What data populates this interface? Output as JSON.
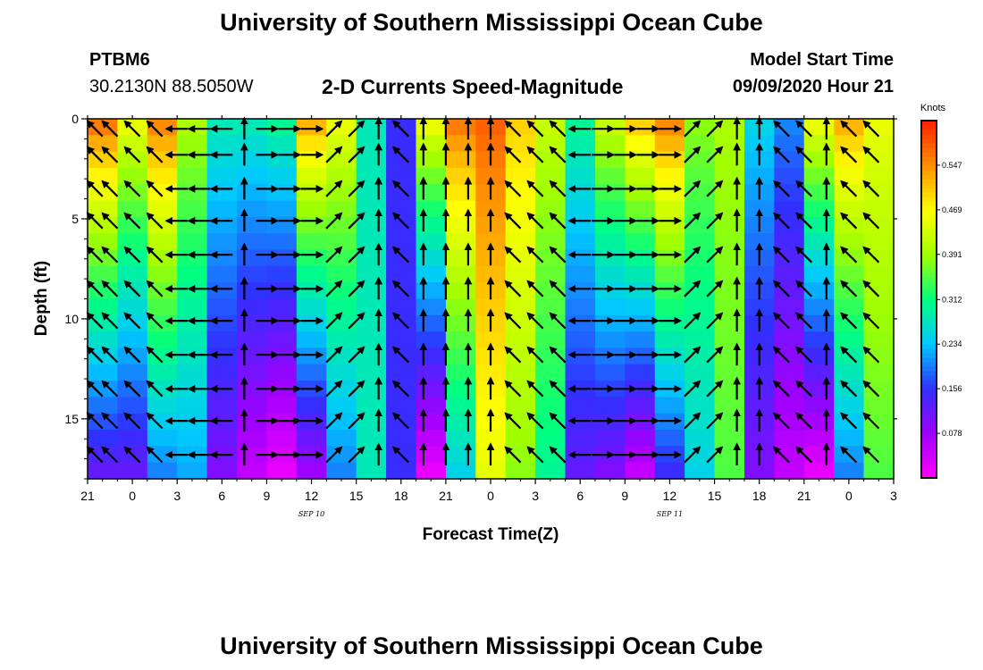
{
  "header": {
    "title": "University of Southern Mississippi Ocean Cube",
    "station_id": "PTBM6",
    "station_coords": "30.2130N 88.5050W",
    "plot_title": "2-D Currents Speed-Magnitude",
    "model_start_label": "Model Start Time",
    "model_start_value": "09/09/2020 Hour 21"
  },
  "footer": {
    "title": "University of Southern Mississippi Ocean Cube"
  },
  "chart_data": {
    "type": "heatmap",
    "title": "2-D Currents Speed-Magnitude",
    "xlabel": "Forecast Time(Z)",
    "ylabel": "Depth (ft)",
    "x_range_hours": [
      0,
      54
    ],
    "x_start": "09/09/2020 21Z",
    "x_tick_labels": [
      "21",
      "0",
      "3",
      "6",
      "9",
      "12",
      "15",
      "18",
      "21",
      "0",
      "3",
      "6",
      "9",
      "12",
      "15",
      "18",
      "21",
      "0",
      "3"
    ],
    "date_labels": [
      {
        "text": "SEP 10",
        "hour": 15
      },
      {
        "text": "SEP 11",
        "hour": 39
      }
    ],
    "y_range_ft": [
      0,
      18
    ],
    "y_ticks": [
      0,
      5,
      10,
      15
    ],
    "y_tick_labels": [
      "0",
      "5",
      "10",
      "15"
    ],
    "colorbar": {
      "title": "Knots",
      "min": 0.0,
      "max": 0.625,
      "tick_values": [
        0.547,
        0.469,
        0.391,
        0.312,
        0.234,
        0.156,
        0.078
      ],
      "tick_labels": [
        "0.547",
        "0.469",
        "0.391",
        "0.312",
        "0.234",
        "0.156",
        "0.078"
      ],
      "colors": [
        "#ff00ff",
        "#a000ff",
        "#3030ff",
        "#00c8ff",
        "#00ff80",
        "#a0ff00",
        "#ffff00",
        "#ff9000",
        "#ff2000"
      ]
    },
    "surface_speed_knots": [
      0.56,
      0.45,
      0.55,
      0.4,
      0.28,
      0.28,
      0.3,
      0.52,
      0.45,
      0.28,
      0.15,
      0.45,
      0.56,
      0.58,
      0.5,
      0.42,
      0.3,
      0.42,
      0.5,
      0.55,
      0.38,
      0.4,
      0.25,
      0.2,
      0.45,
      0.52,
      0.45
    ],
    "bottom_speed_knots": [
      0.12,
      0.12,
      0.2,
      0.22,
      0.1,
      0.05,
      0.02,
      0.08,
      0.2,
      0.28,
      0.15,
      0.02,
      0.25,
      0.45,
      0.38,
      0.3,
      0.12,
      0.1,
      0.05,
      0.15,
      0.25,
      0.35,
      0.1,
      0.05,
      0.02,
      0.2,
      0.35
    ],
    "vector_columns_hours": [
      0.5,
      1.5,
      3,
      4.5,
      6,
      7.5,
      9,
      10.5,
      12,
      13.5,
      15,
      16.5,
      18,
      19.5,
      21,
      22.5,
      24,
      25.5,
      27,
      28.5,
      30,
      31.5,
      33,
      34.5,
      36,
      37.5,
      39,
      40.5,
      42,
      43.5,
      45,
      46.5,
      48,
      49.5,
      51,
      52.5
    ],
    "vector_rows_ft": [
      0.5,
      1.8,
      3.5,
      5.1,
      6.8,
      8.5,
      10.1,
      11.8,
      13.5,
      15.1,
      16.8
    ],
    "vector_direction": [
      "NW",
      "NW",
      "NW",
      "NW",
      "W",
      "W",
      "W",
      "N",
      "E",
      "E",
      "E",
      "NE",
      "NE",
      "N",
      "NW",
      "N",
      "N",
      "N",
      "N",
      "NW",
      "NW",
      "NW",
      "W",
      "E",
      "E",
      "E",
      "E",
      "NE",
      "NE",
      "N",
      "N",
      "NW",
      "NW",
      "N",
      "NW",
      "NW"
    ]
  }
}
